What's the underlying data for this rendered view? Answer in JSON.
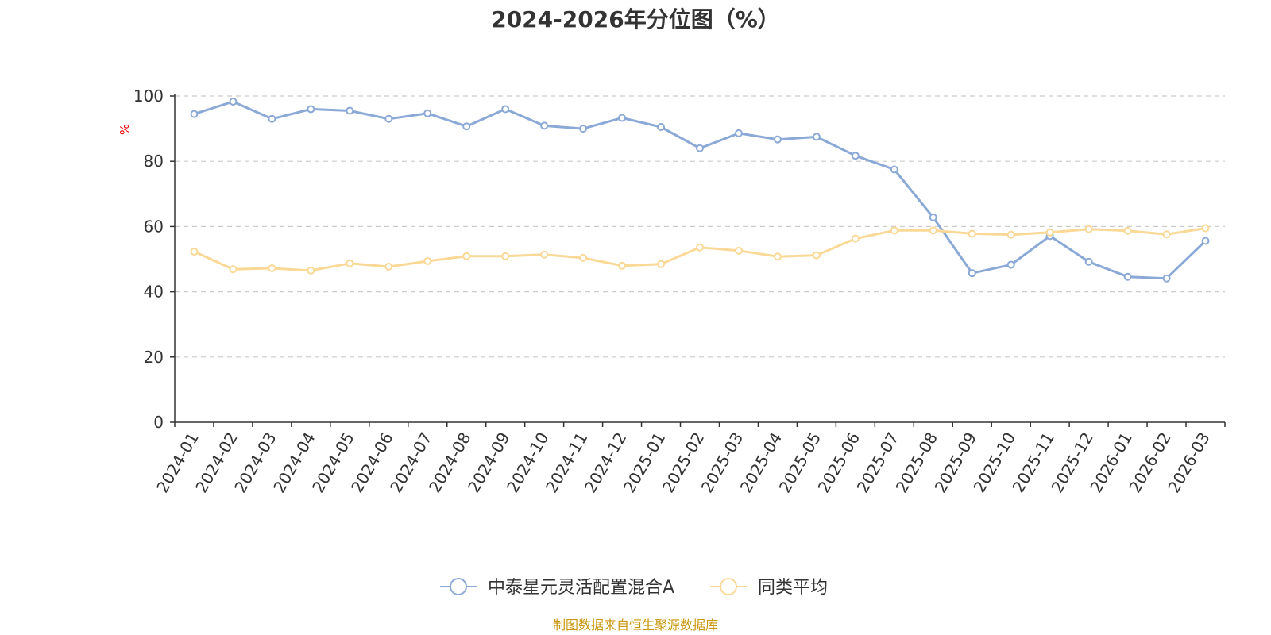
{
  "chart_data": {
    "type": "line",
    "title": "2024-2026年分位图（%）",
    "ylabel": "%",
    "ylim": [
      0,
      100
    ],
    "yticks": [
      "0",
      "20",
      "40",
      "60",
      "80",
      "100"
    ],
    "grid": true,
    "legend_position": "bottom",
    "categories": [
      "2024-01",
      "2024-02",
      "2024-03",
      "2024-04",
      "2024-05",
      "2024-06",
      "2024-07",
      "2024-08",
      "2024-09",
      "2024-10",
      "2024-11",
      "2024-12",
      "2025-01",
      "2025-02",
      "2025-03",
      "2025-04",
      "2025-05",
      "2025-06",
      "2025-07",
      "2025-08",
      "2025-09",
      "2025-10",
      "2025-11",
      "2025-12",
      "2026-01",
      "2026-02",
      "2026-03"
    ],
    "series": [
      {
        "name": "中泰星元灵活配置混合A",
        "color": "#8ba9d6",
        "values": [
          94.5,
          98.3,
          93.0,
          96.0,
          95.5,
          93.0,
          94.7,
          90.7,
          96.0,
          90.9,
          90.0,
          93.3,
          90.5,
          84.0,
          88.6,
          86.7,
          87.5,
          81.7,
          77.5,
          62.8,
          45.7,
          48.3,
          57.1,
          49.2,
          44.6,
          44.1,
          55.6
        ]
      },
      {
        "name": "同类平均",
        "color": "#fad896",
        "values": [
          52.3,
          46.9,
          47.2,
          46.5,
          48.7,
          47.7,
          49.4,
          50.9,
          50.9,
          51.4,
          50.4,
          48.0,
          48.5,
          53.6,
          52.6,
          50.8,
          51.2,
          56.3,
          58.8,
          58.8,
          57.8,
          57.5,
          58.2,
          59.2,
          58.7,
          57.6,
          59.5
        ]
      }
    ]
  },
  "source_note": "制图数据来自恒生聚源数据库"
}
